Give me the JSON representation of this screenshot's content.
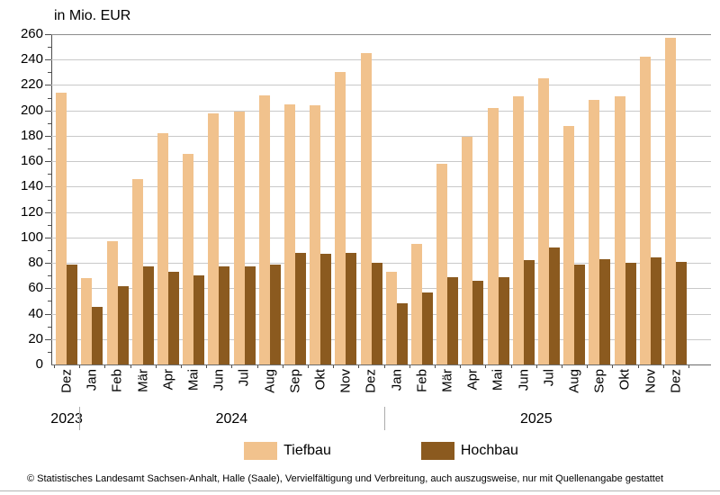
{
  "title": "in Mio. EUR",
  "footer": "© Statistisches Landesamt Sachsen-Anhalt, Halle (Saale), Vervielfältigung und Verbreitung, auch auszugsweise, nur mit Quellenangabe gestattet",
  "colors": {
    "tiefbau": "#F1C28D",
    "hochbau": "#8B5A1F",
    "grid": "#C9C9C9",
    "grid_top": "#8C8C8C",
    "axis": "#4d4d4d",
    "separator": "#ABABAB"
  },
  "chart_data": {
    "type": "bar",
    "title": "in Mio. EUR",
    "ylabel": "in Mio. EUR",
    "xlabel": "",
    "ylim": [
      0,
      260
    ],
    "ytick_step": 20,
    "yticks": [
      0,
      20,
      40,
      60,
      80,
      100,
      120,
      140,
      160,
      180,
      200,
      220,
      240,
      260
    ],
    "grid": true,
    "legend_position": "bottom",
    "categories": [
      "Dez",
      "Jan",
      "Feb",
      "Mär",
      "Apr",
      "Mai",
      "Jun",
      "Jul",
      "Aug",
      "Sep",
      "Okt",
      "Nov",
      "Dez",
      "Jan",
      "Feb",
      "Mär",
      "Apr",
      "Mai",
      "Jun",
      "Jul",
      "Aug",
      "Sep",
      "Okt",
      "Nov",
      "Dez"
    ],
    "year_groups": [
      {
        "year": "2023",
        "months": 1
      },
      {
        "year": "2024",
        "months": 12
      },
      {
        "year": "2025",
        "months": 12
      }
    ],
    "series": [
      {
        "name": "Tiefbau",
        "color": "#F1C28D",
        "values": [
          214,
          68,
          97,
          146,
          182,
          166,
          198,
          199,
          212,
          205,
          204,
          230,
          245,
          73,
          95,
          158,
          179,
          202,
          211,
          225,
          188,
          208,
          211,
          242,
          257
        ]
      },
      {
        "name": "Hochbau",
        "color": "#8B5A1F",
        "values": [
          79,
          45,
          62,
          77,
          73,
          70,
          77,
          77,
          79,
          88,
          87,
          88,
          80,
          48,
          57,
          69,
          66,
          69,
          82,
          92,
          79,
          83,
          80,
          84,
          81
        ]
      }
    ]
  }
}
